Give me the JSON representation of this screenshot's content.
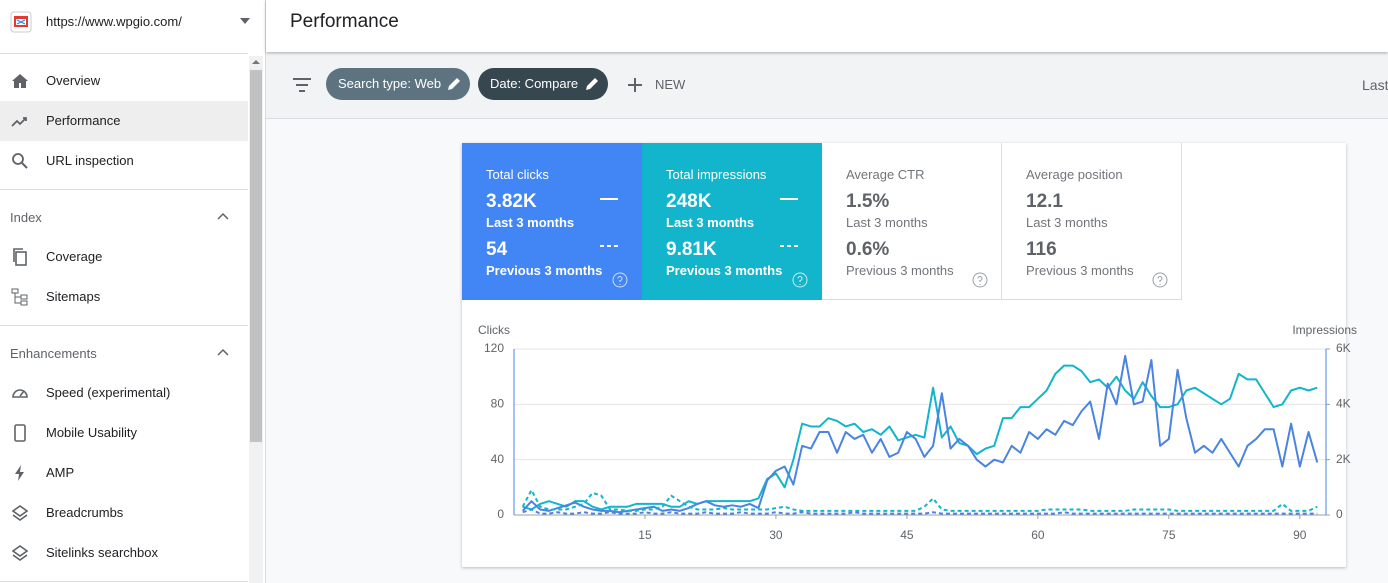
{
  "sidebar": {
    "property": "https://www.wpgio.com/",
    "nav": [
      "Overview",
      "Performance",
      "URL inspection"
    ],
    "sections": [
      {
        "title": "Index",
        "items": [
          "Coverage",
          "Sitemaps"
        ]
      },
      {
        "title": "Enhancements",
        "items": [
          "Speed (experimental)",
          "Mobile Usability",
          "AMP",
          "Breadcrumbs",
          "Sitelinks searchbox"
        ]
      }
    ]
  },
  "header": {
    "title": "Performance"
  },
  "toolbar": {
    "filters": [
      "Search type: Web",
      "Date: Compare"
    ],
    "new": "NEW",
    "date_range": "Last"
  },
  "metrics": [
    {
      "label": "Total clicks",
      "current": "3.82K",
      "current_period": "Last 3 months",
      "previous": "54",
      "previous_period": "Previous 3 months"
    },
    {
      "label": "Total impressions",
      "current": "248K",
      "current_period": "Last 3 months",
      "previous": "9.81K",
      "previous_period": "Previous 3 months"
    },
    {
      "label": "Average CTR",
      "current": "1.5%",
      "current_period": "Last 3 months",
      "previous": "0.6%",
      "previous_period": "Previous 3 months"
    },
    {
      "label": "Average position",
      "current": "12.1",
      "current_period": "Last 3 months",
      "previous": "116",
      "previous_period": "Previous 3 months"
    }
  ],
  "chart_data": {
    "type": "line",
    "y_label": "Clicks",
    "y2_label": "Impressions",
    "x": [
      1,
      2,
      3,
      4,
      5,
      6,
      7,
      8,
      9,
      10,
      11,
      12,
      13,
      14,
      15,
      16,
      17,
      18,
      19,
      20,
      21,
      22,
      23,
      24,
      25,
      26,
      27,
      28,
      29,
      30,
      31,
      32,
      33,
      34,
      35,
      36,
      37,
      38,
      39,
      40,
      41,
      42,
      43,
      44,
      45,
      46,
      47,
      48,
      49,
      50,
      51,
      52,
      53,
      54,
      55,
      56,
      57,
      58,
      59,
      60,
      61,
      62,
      63,
      64,
      65,
      66,
      67,
      68,
      69,
      70,
      71,
      72,
      73,
      74,
      75,
      76,
      77,
      78,
      79,
      80,
      81,
      82,
      83,
      84,
      85,
      86,
      87,
      88,
      89,
      90,
      91,
      92
    ],
    "xlim": [
      0,
      93
    ],
    "xticks": [
      15,
      30,
      45,
      60,
      75,
      90
    ],
    "ylim": [
      0,
      120
    ],
    "yticks": [
      0,
      40,
      80,
      120
    ],
    "y2lim": [
      0,
      6000
    ],
    "y2ticks": [
      0,
      {
        "value": 2000,
        "label": "2K"
      },
      {
        "value": 4000,
        "label": "4K"
      },
      {
        "value": 6000,
        "label": "6K"
      }
    ],
    "grid": true,
    "series": [
      {
        "color": "#12b5cb",
        "axis": "y2",
        "dashed": false,
        "values": [
          300,
          200,
          400,
          500,
          400,
          300,
          500,
          500,
          300,
          200,
          300,
          300,
          300,
          400,
          400,
          400,
          400,
          300,
          300,
          500,
          400,
          500,
          500,
          500,
          500,
          500,
          500,
          600,
          1300,
          1500,
          1000,
          2000,
          3300,
          3200,
          3200,
          3500,
          3400,
          3200,
          3300,
          3000,
          3100,
          2900,
          3200,
          2700,
          2800,
          2900,
          2800,
          4600,
          2800,
          3200,
          2600,
          2500,
          2200,
          2400,
          2500,
          3500,
          3500,
          3900,
          3900,
          4200,
          4500,
          5100,
          5400,
          5400,
          5200,
          4800,
          4900,
          4600,
          5000,
          4500,
          4200,
          4800,
          4300,
          3900,
          3900,
          4000,
          4500,
          4600,
          4400,
          4200,
          4000,
          4200,
          5100,
          4900,
          4900,
          4400,
          3900,
          4000,
          4500,
          4600,
          4500,
          4600
        ]
      },
      {
        "color": "#4a84e0",
        "axis": "y",
        "dashed": false,
        "values": [
          3,
          10,
          4,
          3,
          5,
          7,
          9,
          6,
          4,
          3,
          3,
          2,
          3,
          4,
          5,
          6,
          3,
          4,
          3,
          5,
          8,
          10,
          7,
          6,
          7,
          6,
          8,
          5,
          25,
          32,
          35,
          22,
          50,
          48,
          60,
          60,
          45,
          60,
          55,
          58,
          45,
          55,
          42,
          45,
          60,
          55,
          42,
          50,
          88,
          48,
          55,
          50,
          40,
          35,
          40,
          38,
          50,
          45,
          60,
          55,
          62,
          58,
          68,
          65,
          75,
          82,
          55,
          95,
          80,
          115,
          80,
          82,
          112,
          50,
          55,
          105,
          70,
          45,
          50,
          45,
          55,
          45,
          35,
          50,
          55,
          62,
          62,
          35,
          66,
          35,
          60,
          38
        ]
      },
      {
        "color": "#12b5cb",
        "axis": "y2",
        "dashed": true,
        "values": [
          300,
          900,
          300,
          200,
          200,
          200,
          300,
          400,
          800,
          700,
          200,
          200,
          150,
          150,
          200,
          200,
          300,
          700,
          500,
          300,
          200,
          200,
          200,
          250,
          200,
          200,
          200,
          200,
          200,
          250,
          300,
          200,
          150,
          150,
          150,
          150,
          150,
          150,
          150,
          150,
          150,
          150,
          150,
          150,
          150,
          150,
          300,
          600,
          200,
          150,
          150,
          150,
          150,
          150,
          150,
          150,
          150,
          150,
          150,
          150,
          200,
          200,
          200,
          200,
          200,
          150,
          150,
          150,
          150,
          150,
          200,
          200,
          200,
          200,
          200,
          150,
          150,
          150,
          150,
          150,
          150,
          150,
          150,
          150,
          150,
          150,
          150,
          400,
          150,
          150,
          150,
          300
        ]
      },
      {
        "color": "#4a84e0",
        "axis": "y",
        "dashed": true,
        "values": [
          2,
          4,
          1,
          1,
          2,
          1,
          1,
          2,
          1,
          1,
          2,
          1,
          1,
          1,
          2,
          1,
          1,
          2,
          1,
          1,
          1,
          2,
          1,
          1,
          1,
          2,
          1,
          1,
          1,
          2,
          1,
          1,
          2,
          1,
          1,
          1,
          1,
          1,
          2,
          1,
          1,
          1,
          1,
          1,
          1,
          1,
          1,
          2,
          1,
          1,
          1,
          1,
          1,
          1,
          1,
          1,
          1,
          1,
          1,
          1,
          1,
          1,
          2,
          1,
          1,
          1,
          1,
          1,
          1,
          1,
          1,
          1,
          1,
          1,
          1,
          1,
          1,
          1,
          1,
          1,
          1,
          1,
          1,
          1,
          1,
          1,
          1,
          1,
          1,
          1,
          1,
          1
        ]
      }
    ]
  }
}
